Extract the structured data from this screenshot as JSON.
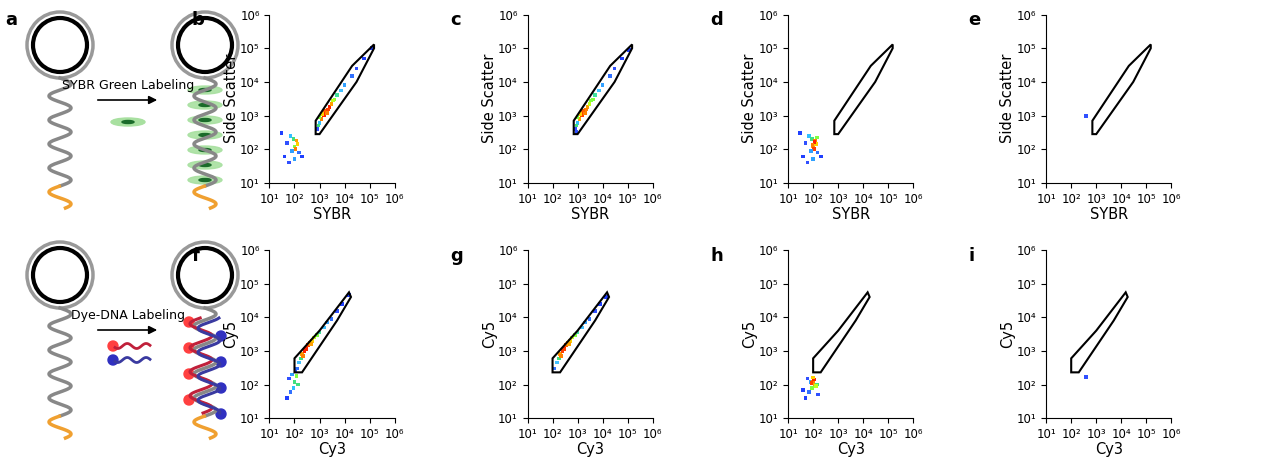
{
  "diagram": {
    "label": "a",
    "arrows": [
      {
        "text": "SYBR Green Labeling"
      },
      {
        "text": "Dye-DNA Labeling"
      }
    ]
  },
  "chart_data": [
    {
      "type": "scatter",
      "label": "b",
      "x_label": "SYBR",
      "y_label": "Side Scatter",
      "log": true,
      "marker": "square",
      "xlim": [
        10,
        1000000
      ],
      "ylim": [
        10,
        1000000
      ],
      "xticks": [
        {
          "value": 10,
          "label": "10¹"
        },
        {
          "value": 100,
          "label": "10²"
        },
        {
          "value": 1000,
          "label": "10³"
        },
        {
          "value": 10000,
          "label": "10⁴"
        },
        {
          "value": 100000,
          "label": "10⁵"
        },
        {
          "value": 1000000,
          "label": "10⁶"
        }
      ],
      "yticks": [
        {
          "value": 10,
          "label": "10¹"
        },
        {
          "value": 100,
          "label": "10²"
        },
        {
          "value": 1000,
          "label": "10³"
        },
        {
          "value": 10000,
          "label": "10⁴"
        },
        {
          "value": 100000,
          "label": "10⁵"
        },
        {
          "value": 1000000,
          "label": "10⁶"
        }
      ],
      "gate": [
        [
          700,
          280
        ],
        [
          700,
          700
        ],
        [
          20000,
          30000
        ],
        [
          150000,
          130000
        ],
        [
          150000,
          100000
        ],
        [
          30000,
          10000
        ],
        [
          1000,
          280
        ]
      ],
      "x": [
        800,
        1000,
        1200,
        1500,
        1800,
        2000,
        2500,
        3000,
        1300,
        1000,
        900,
        4000,
        5000,
        7000,
        10000,
        20000,
        30000,
        60000,
        120000,
        2200,
        1600,
        3500,
        50,
        70,
        90,
        100,
        120,
        110,
        130,
        80,
        150,
        200,
        40,
        60,
        100,
        30
      ],
      "values": [
        400,
        600,
        800,
        1000,
        1300,
        1200,
        1800,
        2200,
        1100,
        900,
        500,
        3000,
        4000,
        5500,
        8000,
        15000,
        25000,
        50000,
        100000,
        1500,
        1400,
        2800,
        150,
        250,
        200,
        120,
        180,
        100,
        140,
        90,
        80,
        60,
        60,
        40,
        50,
        300
      ],
      "colors": [
        "#3050ff",
        "#30c0ff",
        "#ff8000",
        "#ff2000",
        "#ff2000",
        "#ff8000",
        "#ff2000",
        "#ffa000",
        "#ffd000",
        "#80ff40",
        "#40e080",
        "#80ff40",
        "#40e0a0",
        "#40c0ff",
        "#30a0ff",
        "#3070ff",
        "#3050ff",
        "#2040ff",
        "#2040ff",
        "#ff4000",
        "#ff6000",
        "#c0ff20",
        "#3050ff",
        "#30c0ff",
        "#40e080",
        "#80ff40",
        "#ffa000",
        "#ff8000",
        "#ffd000",
        "#30a0ff",
        "#3070ff",
        "#2040ff",
        "#2040ff",
        "#3050ff",
        "#30a0ff",
        "#2040ff"
      ]
    },
    {
      "type": "scatter",
      "label": "c",
      "x_label": "SYBR",
      "y_label": "Side Scatter",
      "log": true,
      "marker": "square",
      "xlim": [
        10,
        1000000
      ],
      "ylim": [
        10,
        1000000
      ],
      "xticks": [
        {
          "value": 10,
          "label": "10¹"
        },
        {
          "value": 100,
          "label": "10²"
        },
        {
          "value": 1000,
          "label": "10³"
        },
        {
          "value": 10000,
          "label": "10⁴"
        },
        {
          "value": 100000,
          "label": "10⁵"
        },
        {
          "value": 1000000,
          "label": "10⁶"
        }
      ],
      "yticks": [
        {
          "value": 10,
          "label": "10¹"
        },
        {
          "value": 100,
          "label": "10²"
        },
        {
          "value": 1000,
          "label": "10³"
        },
        {
          "value": 10000,
          "label": "10⁴"
        },
        {
          "value": 100000,
          "label": "10⁵"
        },
        {
          "value": 1000000,
          "label": "10⁶"
        }
      ],
      "gate": [
        [
          700,
          280
        ],
        [
          700,
          700
        ],
        [
          20000,
          30000
        ],
        [
          150000,
          130000
        ],
        [
          150000,
          100000
        ],
        [
          30000,
          10000
        ],
        [
          1000,
          280
        ]
      ],
      "x": [
        800,
        1000,
        1200,
        1500,
        1800,
        2000,
        2500,
        3000,
        1300,
        1000,
        900,
        4000,
        5000,
        7000,
        10000,
        20000,
        30000,
        60000,
        110000,
        2200,
        1600,
        3500,
        900
      ],
      "values": [
        400,
        600,
        800,
        1000,
        1300,
        1200,
        1800,
        2200,
        1100,
        900,
        500,
        3000,
        4000,
        5500,
        8000,
        15000,
        25000,
        50000,
        90000,
        1500,
        1400,
        2800,
        320
      ],
      "colors": [
        "#3050ff",
        "#30c0ff",
        "#ffa000",
        "#ff4000",
        "#ff4000",
        "#ff8000",
        "#ffa000",
        "#c0ff20",
        "#ffd000",
        "#80ff40",
        "#40e080",
        "#80ff40",
        "#40e0a0",
        "#40c0ff",
        "#30a0ff",
        "#3070ff",
        "#3050ff",
        "#2040ff",
        "#2040ff",
        "#ff8000",
        "#ff6000",
        "#80ff40",
        "#3050ff"
      ]
    },
    {
      "type": "scatter",
      "label": "d",
      "x_label": "SYBR",
      "y_label": "Side Scatter",
      "log": true,
      "marker": "square",
      "xlim": [
        10,
        1000000
      ],
      "ylim": [
        10,
        1000000
      ],
      "xticks": [
        {
          "value": 10,
          "label": "10¹"
        },
        {
          "value": 100,
          "label": "10²"
        },
        {
          "value": 1000,
          "label": "10³"
        },
        {
          "value": 10000,
          "label": "10⁴"
        },
        {
          "value": 100000,
          "label": "10⁵"
        },
        {
          "value": 1000000,
          "label": "10⁶"
        }
      ],
      "yticks": [
        {
          "value": 10,
          "label": "10¹"
        },
        {
          "value": 100,
          "label": "10²"
        },
        {
          "value": 1000,
          "label": "10³"
        },
        {
          "value": 10000,
          "label": "10⁴"
        },
        {
          "value": 100000,
          "label": "10⁵"
        },
        {
          "value": 1000000,
          "label": "10⁶"
        }
      ],
      "gate": [
        [
          700,
          280
        ],
        [
          700,
          700
        ],
        [
          20000,
          30000
        ],
        [
          150000,
          130000
        ],
        [
          150000,
          100000
        ],
        [
          30000,
          10000
        ],
        [
          1000,
          280
        ]
      ],
      "x": [
        50,
        70,
        90,
        100,
        120,
        110,
        130,
        80,
        150,
        200,
        40,
        60,
        100,
        30,
        140,
        115,
        95
      ],
      "values": [
        150,
        250,
        200,
        120,
        180,
        100,
        140,
        90,
        80,
        60,
        60,
        40,
        50,
        300,
        220,
        160,
        130
      ],
      "colors": [
        "#3050ff",
        "#30c0ff",
        "#40e080",
        "#ffa000",
        "#ff8000",
        "#ff4000",
        "#ffd000",
        "#30a0ff",
        "#3070ff",
        "#2040ff",
        "#2040ff",
        "#3050ff",
        "#30a0ff",
        "#2040ff",
        "#80ff40",
        "#ff2000",
        "#ff8000"
      ]
    },
    {
      "type": "scatter",
      "label": "e",
      "x_label": "SYBR",
      "y_label": "Side Scatter",
      "log": true,
      "marker": "square",
      "xlim": [
        10,
        1000000
      ],
      "ylim": [
        10,
        1000000
      ],
      "xticks": [
        {
          "value": 10,
          "label": "10¹"
        },
        {
          "value": 100,
          "label": "10²"
        },
        {
          "value": 1000,
          "label": "10³"
        },
        {
          "value": 10000,
          "label": "10⁴"
        },
        {
          "value": 100000,
          "label": "10⁵"
        },
        {
          "value": 1000000,
          "label": "10⁶"
        }
      ],
      "yticks": [
        {
          "value": 10,
          "label": "10¹"
        },
        {
          "value": 100,
          "label": "10²"
        },
        {
          "value": 1000,
          "label": "10³"
        },
        {
          "value": 10000,
          "label": "10⁴"
        },
        {
          "value": 100000,
          "label": "10⁵"
        },
        {
          "value": 1000000,
          "label": "10⁶"
        }
      ],
      "gate": [
        [
          700,
          280
        ],
        [
          700,
          700
        ],
        [
          20000,
          30000
        ],
        [
          150000,
          130000
        ],
        [
          150000,
          100000
        ],
        [
          30000,
          10000
        ],
        [
          1000,
          280
        ]
      ],
      "x": [
        400
      ],
      "values": [
        1000
      ],
      "colors": [
        "#3050ff"
      ]
    },
    {
      "type": "scatter",
      "label": "f",
      "x_label": "Cy3",
      "y_label": "Cy5",
      "log": true,
      "marker": "square",
      "xlim": [
        10,
        1000000
      ],
      "ylim": [
        10,
        1000000
      ],
      "xticks": [
        {
          "value": 10,
          "label": "10¹"
        },
        {
          "value": 100,
          "label": "10²"
        },
        {
          "value": 1000,
          "label": "10³"
        },
        {
          "value": 10000,
          "label": "10⁴"
        },
        {
          "value": 100000,
          "label": "10⁵"
        },
        {
          "value": 1000000,
          "label": "10⁶"
        }
      ],
      "yticks": [
        {
          "value": 10,
          "label": "10¹"
        },
        {
          "value": 100,
          "label": "10²"
        },
        {
          "value": 1000,
          "label": "10³"
        },
        {
          "value": 10000,
          "label": "10⁴"
        },
        {
          "value": 100000,
          "label": "10⁵"
        },
        {
          "value": 1000000,
          "label": "10⁶"
        }
      ],
      "gate": [
        [
          100,
          230
        ],
        [
          100,
          600
        ],
        [
          1000,
          4000
        ],
        [
          15000,
          55000
        ],
        [
          18000,
          40000
        ],
        [
          5000,
          8000
        ],
        [
          200,
          230
        ]
      ],
      "x": [
        120,
        150,
        180,
        200,
        250,
        300,
        350,
        400,
        500,
        600,
        800,
        1000,
        1500,
        2000,
        3000,
        5000,
        8000,
        15000,
        220,
        280,
        450,
        60,
        80,
        100,
        120,
        90,
        70,
        140,
        50,
        110,
        130
      ],
      "values": [
        300,
        450,
        600,
        800,
        1000,
        1200,
        1500,
        1700,
        2000,
        2500,
        3000,
        3500,
        5000,
        7000,
        9000,
        15000,
        25000,
        45000,
        700,
        1100,
        1600,
        150,
        200,
        120,
        180,
        80,
        60,
        100,
        40,
        250,
        300
      ],
      "colors": [
        "#3070ff",
        "#40c0ff",
        "#40e080",
        "#ffa000",
        "#ff2000",
        "#ff2000",
        "#ff4000",
        "#ff8000",
        "#ffd000",
        "#c0ff20",
        "#80ff40",
        "#40e0a0",
        "#40c0ff",
        "#30a0ff",
        "#3070ff",
        "#3050ff",
        "#2040ff",
        "#2040ff",
        "#ff8000",
        "#ff2000",
        "#ffa000",
        "#3050ff",
        "#30a0ff",
        "#40e080",
        "#80ff40",
        "#30c0ff",
        "#3070ff",
        "#40e080",
        "#2040ff",
        "#3050ff",
        "#3070ff"
      ]
    },
    {
      "type": "scatter",
      "label": "g",
      "x_label": "Cy3",
      "y_label": "Cy5",
      "log": true,
      "marker": "square",
      "xlim": [
        10,
        1000000
      ],
      "ylim": [
        10,
        1000000
      ],
      "xticks": [
        {
          "value": 10,
          "label": "10¹"
        },
        {
          "value": 100,
          "label": "10²"
        },
        {
          "value": 1000,
          "label": "10³"
        },
        {
          "value": 10000,
          "label": "10⁴"
        },
        {
          "value": 100000,
          "label": "10⁵"
        },
        {
          "value": 1000000,
          "label": "10⁶"
        }
      ],
      "yticks": [
        {
          "value": 10,
          "label": "10¹"
        },
        {
          "value": 100,
          "label": "10²"
        },
        {
          "value": 1000,
          "label": "10³"
        },
        {
          "value": 10000,
          "label": "10⁴"
        },
        {
          "value": 100000,
          "label": "10⁵"
        },
        {
          "value": 1000000,
          "label": "10⁶"
        }
      ],
      "gate": [
        [
          100,
          230
        ],
        [
          100,
          600
        ],
        [
          1000,
          4000
        ],
        [
          15000,
          55000
        ],
        [
          18000,
          40000
        ],
        [
          5000,
          8000
        ],
        [
          200,
          230
        ]
      ],
      "x": [
        120,
        150,
        180,
        200,
        250,
        300,
        350,
        400,
        500,
        600,
        800,
        1000,
        1500,
        2000,
        3000,
        5000,
        8000,
        14000,
        220,
        280,
        450
      ],
      "values": [
        300,
        450,
        600,
        800,
        1000,
        1200,
        1500,
        1700,
        2000,
        2500,
        3000,
        3500,
        5000,
        7000,
        9000,
        15000,
        25000,
        40000,
        700,
        1100,
        1600
      ],
      "colors": [
        "#3070ff",
        "#40c0ff",
        "#40e080",
        "#ffa000",
        "#ff4000",
        "#ff2000",
        "#ff6000",
        "#ffa000",
        "#ffd000",
        "#c0ff20",
        "#80ff40",
        "#40e0a0",
        "#40c0ff",
        "#30a0ff",
        "#3070ff",
        "#3050ff",
        "#2040ff",
        "#2040ff",
        "#ff8000",
        "#ff4000",
        "#ffa000"
      ]
    },
    {
      "type": "scatter",
      "label": "h",
      "x_label": "Cy3",
      "y_label": "Cy5",
      "log": true,
      "marker": "square",
      "xlim": [
        10,
        1000000
      ],
      "ylim": [
        10,
        1000000
      ],
      "xticks": [
        {
          "value": 10,
          "label": "10¹"
        },
        {
          "value": 100,
          "label": "10²"
        },
        {
          "value": 1000,
          "label": "10³"
        },
        {
          "value": 10000,
          "label": "10⁴"
        },
        {
          "value": 100000,
          "label": "10⁵"
        },
        {
          "value": 1000000,
          "label": "10⁶"
        }
      ],
      "yticks": [
        {
          "value": 10,
          "label": "10¹"
        },
        {
          "value": 100,
          "label": "10²"
        },
        {
          "value": 1000,
          "label": "10³"
        },
        {
          "value": 10000,
          "label": "10⁴"
        },
        {
          "value": 100000,
          "label": "10⁵"
        },
        {
          "value": 1000000,
          "label": "10⁶"
        }
      ],
      "gate": [
        [
          100,
          230
        ],
        [
          100,
          600
        ],
        [
          1000,
          4000
        ],
        [
          15000,
          55000
        ],
        [
          18000,
          40000
        ],
        [
          5000,
          8000
        ],
        [
          200,
          230
        ]
      ],
      "x": [
        60,
        80,
        100,
        120,
        90,
        70,
        140,
        50,
        110,
        130,
        100,
        85,
        40,
        160
      ],
      "values": [
        150,
        120,
        120,
        100,
        80,
        60,
        100,
        40,
        140,
        90,
        160,
        110,
        70,
        50
      ],
      "colors": [
        "#3050ff",
        "#30a0ff",
        "#ff8000",
        "#ffa000",
        "#80ff40",
        "#3070ff",
        "#40e080",
        "#2040ff",
        "#ff2000",
        "#c0ff20",
        "#ffd000",
        "#ff4000",
        "#2040ff",
        "#3050ff"
      ]
    },
    {
      "type": "scatter",
      "label": "i",
      "x_label": "Cy3",
      "y_label": "Cy5",
      "log": true,
      "marker": "square",
      "xlim": [
        10,
        1000000
      ],
      "ylim": [
        10,
        1000000
      ],
      "xticks": [
        {
          "value": 10,
          "label": "10¹"
        },
        {
          "value": 100,
          "label": "10²"
        },
        {
          "value": 1000,
          "label": "10³"
        },
        {
          "value": 10000,
          "label": "10⁴"
        },
        {
          "value": 100000,
          "label": "10⁵"
        },
        {
          "value": 1000000,
          "label": "10⁶"
        }
      ],
      "yticks": [
        {
          "value": 10,
          "label": "10¹"
        },
        {
          "value": 100,
          "label": "10²"
        },
        {
          "value": 1000,
          "label": "10³"
        },
        {
          "value": 10000,
          "label": "10⁴"
        },
        {
          "value": 100000,
          "label": "10⁵"
        },
        {
          "value": 1000000,
          "label": "10⁶"
        }
      ],
      "gate": [
        [
          100,
          230
        ],
        [
          100,
          600
        ],
        [
          1000,
          4000
        ],
        [
          15000,
          55000
        ],
        [
          18000,
          40000
        ],
        [
          5000,
          8000
        ],
        [
          200,
          230
        ]
      ],
      "x": [
        400
      ],
      "values": [
        170
      ],
      "colors": [
        "#3050ff"
      ]
    }
  ]
}
